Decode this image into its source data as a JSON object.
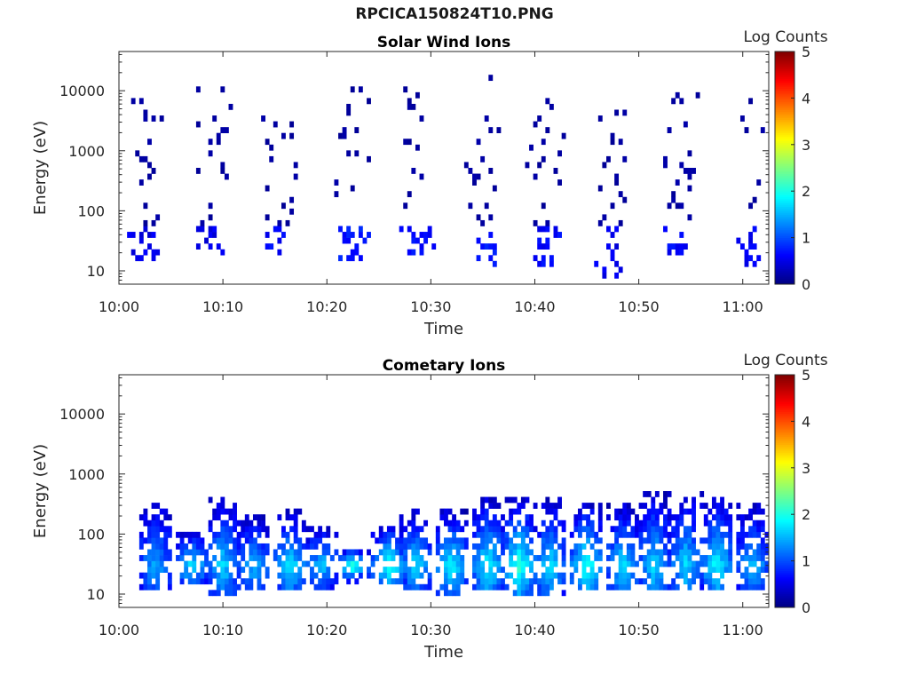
{
  "page_title": "RPCICA150824T10.PNG",
  "colors": {
    "axis": "#262626",
    "background": "#ffffff"
  },
  "chart_data": [
    {
      "type": "heatmap",
      "title": "Solar Wind Ions",
      "xlabel": "Time",
      "ylabel": "Energy (eV)",
      "x_ticks": [
        "10:00",
        "10:10",
        "10:20",
        "10:30",
        "10:40",
        "10:50",
        "11:00"
      ],
      "x_tick_minutes": [
        0,
        10,
        20,
        30,
        40,
        50,
        60
      ],
      "xlim_minutes": [
        0,
        62.5
      ],
      "y_ticks": [
        "10",
        "100",
        "1000",
        "10000"
      ],
      "y_tick_values": [
        10,
        100,
        1000,
        10000
      ],
      "ylim": [
        6,
        45000
      ],
      "y_scale": "log",
      "colorbar": {
        "label": "Log Counts",
        "ticks": [
          "0",
          "1",
          "2",
          "3",
          "4",
          "5"
        ],
        "range": [
          0,
          5
        ],
        "colormap": "jet"
      },
      "bursts": [
        {
          "t": 2.5,
          "lo_e": 15,
          "hi_e": 10000,
          "low_level": 0.4,
          "high_level": 0.1,
          "dense": 0.45
        },
        {
          "t": 9.0,
          "lo_e": 20,
          "hi_e": 12000,
          "low_level": 0.4,
          "high_level": 0.1,
          "dense": 0.4
        },
        {
          "t": 15.5,
          "lo_e": 20,
          "hi_e": 3500,
          "low_level": 0.5,
          "high_level": 0.1,
          "dense": 0.4
        },
        {
          "t": 22.5,
          "lo_e": 15,
          "hi_e": 13000,
          "low_level": 0.6,
          "high_level": 0.1,
          "dense": 0.45
        },
        {
          "t": 28.5,
          "lo_e": 18,
          "hi_e": 13000,
          "low_level": 0.55,
          "high_level": 0.1,
          "dense": 0.45
        },
        {
          "t": 35.0,
          "lo_e": 12,
          "hi_e": 30000,
          "low_level": 0.6,
          "high_level": 0.12,
          "dense": 0.45
        },
        {
          "t": 41.0,
          "lo_e": 12,
          "hi_e": 8000,
          "low_level": 0.5,
          "high_level": 0.1,
          "dense": 0.4
        },
        {
          "t": 47.5,
          "lo_e": 8,
          "hi_e": 5500,
          "low_level": 0.4,
          "high_level": 0.1,
          "dense": 0.3
        },
        {
          "t": 54.0,
          "lo_e": 18,
          "hi_e": 10000,
          "low_level": 0.5,
          "high_level": 0.12,
          "dense": 0.35
        },
        {
          "t": 60.5,
          "lo_e": 12,
          "hi_e": 9000,
          "low_level": 0.45,
          "high_level": 0.1,
          "dense": 0.4
        }
      ]
    },
    {
      "type": "heatmap",
      "title": "Cometary Ions",
      "xlabel": "Time",
      "ylabel": "Energy (eV)",
      "x_ticks": [
        "10:00",
        "10:10",
        "10:20",
        "10:30",
        "10:40",
        "10:50",
        "11:00"
      ],
      "x_tick_minutes": [
        0,
        10,
        20,
        30,
        40,
        50,
        60
      ],
      "xlim_minutes": [
        0,
        62.5
      ],
      "y_ticks": [
        "10",
        "100",
        "1000",
        "10000"
      ],
      "y_tick_values": [
        10,
        100,
        1000,
        10000
      ],
      "ylim": [
        6,
        45000
      ],
      "y_scale": "log",
      "colorbar": {
        "label": "Log Counts",
        "ticks": [
          "0",
          "1",
          "2",
          "3",
          "4",
          "5"
        ],
        "range": [
          0,
          5
        ],
        "colormap": "jet"
      },
      "bursts": [
        {
          "t": 3.5,
          "lo_e": 12,
          "hi_e": 350,
          "peak_level": 1.4
        },
        {
          "t": 7.0,
          "lo_e": 14,
          "hi_e": 120,
          "peak_level": 1.7
        },
        {
          "t": 10.0,
          "lo_e": 10,
          "hi_e": 400,
          "peak_level": 1.6
        },
        {
          "t": 13.0,
          "lo_e": 12,
          "hi_e": 220,
          "peak_level": 1.5
        },
        {
          "t": 16.5,
          "lo_e": 12,
          "hi_e": 250,
          "peak_level": 1.7
        },
        {
          "t": 19.5,
          "lo_e": 12,
          "hi_e": 150,
          "peak_level": 1.5
        },
        {
          "t": 22.5,
          "lo_e": 14,
          "hi_e": 60,
          "peak_level": 2.0
        },
        {
          "t": 26.0,
          "lo_e": 14,
          "hi_e": 150,
          "peak_level": 2.0
        },
        {
          "t": 28.5,
          "lo_e": 12,
          "hi_e": 250,
          "peak_level": 1.6
        },
        {
          "t": 32.0,
          "lo_e": 10,
          "hi_e": 250,
          "peak_level": 1.8
        },
        {
          "t": 35.5,
          "lo_e": 12,
          "hi_e": 400,
          "peak_level": 1.8
        },
        {
          "t": 38.5,
          "lo_e": 10,
          "hi_e": 400,
          "peak_level": 2.0
        },
        {
          "t": 41.5,
          "lo_e": 10,
          "hi_e": 400,
          "peak_level": 1.6
        },
        {
          "t": 45.0,
          "lo_e": 12,
          "hi_e": 350,
          "peak_level": 1.9
        },
        {
          "t": 48.5,
          "lo_e": 12,
          "hi_e": 300,
          "peak_level": 1.7
        },
        {
          "t": 51.5,
          "lo_e": 12,
          "hi_e": 500,
          "peak_level": 1.6
        },
        {
          "t": 54.5,
          "lo_e": 12,
          "hi_e": 500,
          "peak_level": 1.6
        },
        {
          "t": 57.5,
          "lo_e": 12,
          "hi_e": 450,
          "peak_level": 1.8
        },
        {
          "t": 61.0,
          "lo_e": 12,
          "hi_e": 300,
          "peak_level": 1.5
        }
      ]
    }
  ]
}
